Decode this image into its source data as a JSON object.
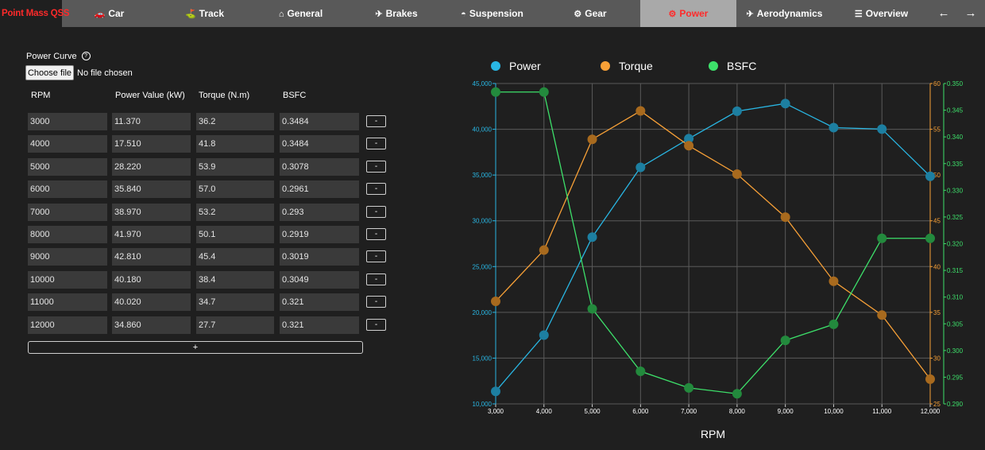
{
  "app": {
    "brand": "Point Mass QSS"
  },
  "nav": {
    "tabs": [
      {
        "label": "Car",
        "icon": "car-icon",
        "glyph": "🚗"
      },
      {
        "label": "Track",
        "icon": "track-icon",
        "glyph": "⛳"
      },
      {
        "label": "General",
        "icon": "general-icon",
        "glyph": "⌂"
      },
      {
        "label": "Brakes",
        "icon": "brakes-icon",
        "glyph": "✈"
      },
      {
        "label": "Suspension",
        "icon": "suspension-icon",
        "glyph": "◓"
      },
      {
        "label": "Gear",
        "icon": "gear-icon",
        "glyph": "⚙"
      },
      {
        "label": "Power",
        "icon": "power-icon",
        "glyph": "⚙",
        "active": true
      },
      {
        "label": "Aerodynamics",
        "icon": "aerodynamics-icon",
        "glyph": "✈"
      },
      {
        "label": "Overview",
        "icon": "overview-icon",
        "glyph": "☰"
      }
    ],
    "back_glyph": "←",
    "forward_glyph": "→"
  },
  "panel": {
    "title": "Power Curve",
    "help_glyph": "?",
    "file_button": "Choose file",
    "file_status": "No file chosen",
    "headers": [
      "RPM",
      "Power Value (kW)",
      "Torque (N.m)",
      "BSFC"
    ],
    "rows": [
      [
        "3000",
        "11.370",
        "36.2",
        "0.3484"
      ],
      [
        "4000",
        "17.510",
        "41.8",
        "0.3484"
      ],
      [
        "5000",
        "28.220",
        "53.9",
        "0.3078"
      ],
      [
        "6000",
        "35.840",
        "57.0",
        "0.2961"
      ],
      [
        "7000",
        "38.970",
        "53.2",
        "0.293"
      ],
      [
        "8000",
        "41.970",
        "50.1",
        "0.2919"
      ],
      [
        "9000",
        "42.810",
        "45.4",
        "0.3019"
      ],
      [
        "10000",
        "40.180",
        "38.4",
        "0.3049"
      ],
      [
        "11000",
        "40.020",
        "34.7",
        "0.321"
      ],
      [
        "12000",
        "34.860",
        "27.7",
        "0.321"
      ]
    ],
    "remove_label": "-",
    "add_label": "+"
  },
  "chart_data": {
    "type": "line",
    "xlabel": "RPM",
    "x": [
      3000,
      4000,
      5000,
      6000,
      7000,
      8000,
      9000,
      10000,
      11000,
      12000
    ],
    "x_ticks": [
      "3,000",
      "4,000",
      "5,000",
      "6,000",
      "7,000",
      "8,000",
      "9,000",
      "10,000",
      "11,000",
      "12,000"
    ],
    "xlim": [
      3000,
      12000
    ],
    "grid": true,
    "legend_placement": "top",
    "series": [
      {
        "name": "Power",
        "axis": "left",
        "color": "#29b6e3",
        "marker_color": "#1d7fa1",
        "values": [
          11370,
          17510,
          28220,
          35840,
          38970,
          41970,
          42810,
          40180,
          40020,
          34860
        ]
      },
      {
        "name": "Torque",
        "axis": "right",
        "color": "#f7a037",
        "marker_color": "#a86a1e",
        "values": [
          36.2,
          41.8,
          53.9,
          57.0,
          53.2,
          50.1,
          45.4,
          38.4,
          34.7,
          27.7
        ]
      },
      {
        "name": "BSFC",
        "axis": "right2",
        "color": "#3de06a",
        "marker_color": "#238a3d",
        "values": [
          0.3484,
          0.3484,
          0.3078,
          0.2961,
          0.293,
          0.2919,
          0.3019,
          0.3049,
          0.321,
          0.321
        ]
      }
    ],
    "y_left": {
      "ylim": [
        10000,
        45000
      ],
      "ticks": [
        "10,000",
        "15,000",
        "20,000",
        "25,000",
        "30,000",
        "35,000",
        "40,000",
        "45,000"
      ],
      "color": "#29b6e3"
    },
    "y_right": {
      "ylim": [
        25,
        60
      ],
      "ticks": [
        "25",
        "30",
        "35",
        "40",
        "45",
        "50",
        "55",
        "60"
      ],
      "color": "#f7a037"
    },
    "y_right2": {
      "ylim": [
        0.29,
        0.35
      ],
      "ticks": [
        "0.290",
        "0.295",
        "0.300",
        "0.305",
        "0.310",
        "0.315",
        "0.320",
        "0.325",
        "0.330",
        "0.335",
        "0.340",
        "0.345",
        "0.350"
      ],
      "color": "#3de06a"
    }
  }
}
